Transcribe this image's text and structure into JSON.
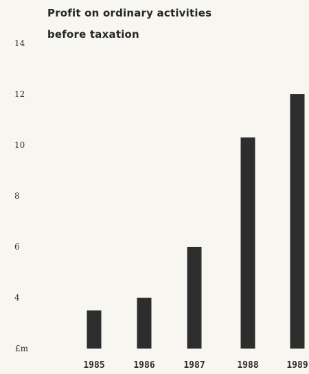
{
  "chart_data": {
    "type": "bar",
    "title_lines": [
      "Profit on ordinary activities",
      "before taxation"
    ],
    "ylabel": "£m",
    "categories": [
      "1985",
      "1986",
      "1987",
      "1988",
      "1989"
    ],
    "values": [
      3.5,
      4.0,
      6.0,
      10.3,
      12.0
    ],
    "yticks": [
      4,
      6,
      8,
      10,
      12,
      14
    ],
    "ylim": [
      2,
      14
    ],
    "grid": false,
    "bar_color": "#2d2d2d"
  }
}
